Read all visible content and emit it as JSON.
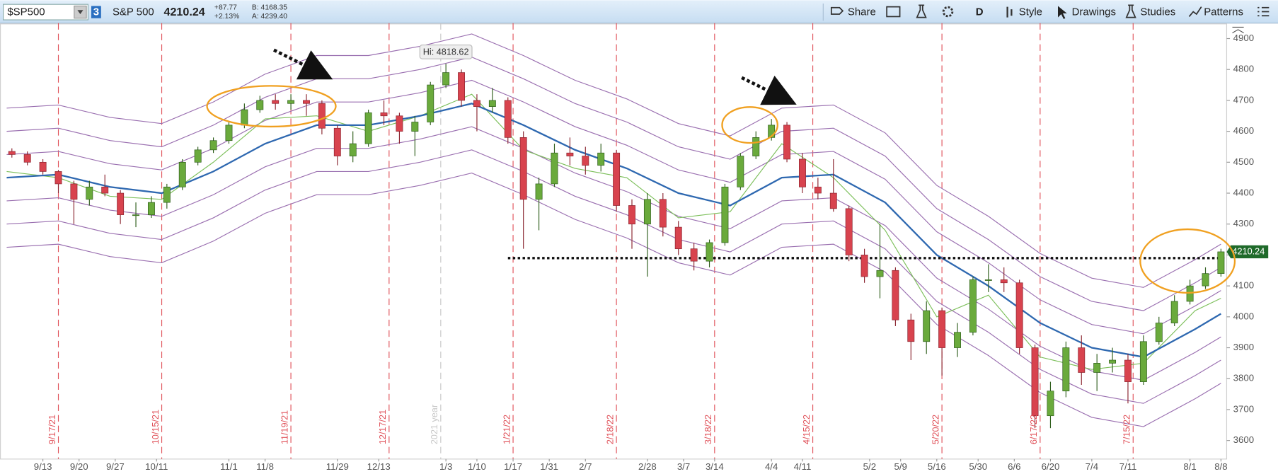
{
  "toolbar": {
    "symbol": "$SP500",
    "badge": "3",
    "name": "S&P 500",
    "last": "4210.24",
    "change": "+87.77",
    "change_pct": "+2.13%",
    "bid": "B: 4168.35",
    "ask": "A: 4239.40",
    "buttons": [
      "Share",
      "D",
      "Style",
      "Drawings",
      "Studies",
      "Patterns"
    ]
  },
  "chart_data": {
    "type": "candlestick",
    "x": [
      1,
      4,
      7,
      10,
      13,
      16,
      19,
      22,
      25,
      28,
      31,
      34,
      37,
      40,
      43,
      46,
      49,
      52,
      55,
      58,
      61,
      64,
      67,
      70,
      73,
      76,
      79,
      82,
      85,
      88,
      91,
      94,
      97,
      100,
      103,
      106,
      109,
      112,
      115,
      118,
      121,
      124,
      127,
      130,
      133,
      136,
      139,
      142,
      145,
      148,
      151,
      154,
      157,
      160,
      163,
      166,
      169,
      172,
      175,
      178,
      181,
      184,
      187,
      190,
      193,
      196,
      199,
      202,
      205,
      208,
      211,
      214,
      217,
      220,
      223,
      226,
      229,
      232,
      235
    ],
    "open": [
      4535,
      4525,
      4500,
      4470,
      4430,
      4380,
      4420,
      4400,
      4330,
      4330,
      4370,
      4420,
      4500,
      4540,
      4570,
      4620,
      4670,
      4700,
      4690,
      4700,
      4690,
      4610,
      4520,
      4560,
      4660,
      4650,
      4600,
      4630,
      4750,
      4790,
      4700,
      4680,
      4700,
      4580,
      4380,
      4430,
      4530,
      4520,
      4490,
      4530,
      4360,
      4300,
      4380,
      4290,
      4220,
      4180,
      4240,
      4420,
      4520,
      4580,
      4620,
      4510,
      4420,
      4400,
      4350,
      4200,
      4130,
      4150,
      3990,
      3920,
      4020,
      3900,
      3950,
      4120,
      4120,
      4110,
      3900,
      3680,
      3760,
      3900,
      3820,
      3850,
      3860,
      3790,
      3920,
      3980,
      4050,
      4100,
      4140
    ],
    "high": [
      4545,
      4535,
      4510,
      4475,
      4440,
      4440,
      4460,
      4410,
      4370,
      4390,
      4430,
      4510,
      4550,
      4580,
      4630,
      4690,
      4715,
      4720,
      4720,
      4720,
      4700,
      4620,
      4600,
      4670,
      4700,
      4660,
      4650,
      4760,
      4818.62,
      4800,
      4720,
      4740,
      4710,
      4600,
      4450,
      4560,
      4580,
      4550,
      4560,
      4540,
      4380,
      4400,
      4400,
      4310,
      4240,
      4250,
      4430,
      4530,
      4600,
      4640,
      4630,
      4530,
      4450,
      4510,
      4360,
      4220,
      4300,
      4160,
      4010,
      4050,
      4030,
      3980,
      4130,
      4170,
      4160,
      4120,
      3910,
      3790,
      3920,
      3940,
      3880,
      3900,
      3880,
      3940,
      4000,
      4070,
      4120,
      4160,
      4220
    ],
    "low": [
      4515,
      4490,
      4460,
      4400,
      4300,
      4360,
      4390,
      4300,
      4290,
      4320,
      4350,
      4410,
      4490,
      4530,
      4560,
      4610,
      4660,
      4670,
      4670,
      4650,
      4590,
      4490,
      4500,
      4550,
      4620,
      4560,
      4520,
      4620,
      4740,
      4680,
      4600,
      4660,
      4560,
      4220,
      4280,
      4420,
      4490,
      4460,
      4470,
      4340,
      4220,
      4130,
      4260,
      4200,
      4150,
      4160,
      4230,
      4410,
      4510,
      4570,
      4500,
      4400,
      4380,
      4340,
      4180,
      4110,
      4060,
      3970,
      3860,
      3880,
      3810,
      3870,
      3940,
      4080,
      4080,
      3880,
      3640,
      3640,
      3740,
      3780,
      3760,
      3820,
      3720,
      3780,
      3910,
      3970,
      4040,
      4090,
      4130
    ],
    "close": [
      4525,
      4500,
      4470,
      4430,
      4380,
      4420,
      4400,
      4330,
      4330,
      4370,
      4420,
      4500,
      4540,
      4570,
      4620,
      4670,
      4700,
      4690,
      4700,
      4690,
      4610,
      4520,
      4560,
      4660,
      4650,
      4600,
      4630,
      4750,
      4790,
      4700,
      4680,
      4700,
      4580,
      4380,
      4430,
      4530,
      4520,
      4490,
      4530,
      4360,
      4300,
      4380,
      4290,
      4220,
      4180,
      4240,
      4420,
      4520,
      4580,
      4620,
      4510,
      4420,
      4400,
      4350,
      4200,
      4130,
      4150,
      3990,
      3920,
      4020,
      3900,
      3950,
      4120,
      4120,
      4110,
      3900,
      3680,
      3760,
      3900,
      3820,
      3850,
      3860,
      3790,
      3920,
      3980,
      4050,
      4100,
      4140,
      4210.24
    ],
    "up_color": "#6aaa3c",
    "down_color": "#d8434e",
    "line_x": [
      0,
      10,
      20,
      30,
      40,
      50,
      60,
      70,
      80,
      90,
      100,
      110,
      120,
      130,
      140,
      150,
      160,
      170,
      180,
      190,
      200,
      210,
      220,
      230,
      235
    ],
    "line_series": [
      {
        "color": "#9a6fb0",
        "width": 1,
        "values": [
          4675,
          4685,
          4645,
          4625,
          4695,
          4785,
          4845,
          4845,
          4875,
          4915,
          4845,
          4765,
          4705,
          4625,
          4585,
          4675,
          4685,
          4595,
          4425,
          4325,
          4205,
          4125,
          4095,
          4185,
          4235
        ]
      },
      {
        "color": "#9a6fb0",
        "width": 1,
        "values": [
          4600,
          4610,
          4570,
          4550,
          4620,
          4710,
          4770,
          4770,
          4800,
          4840,
          4770,
          4690,
          4630,
          4550,
          4510,
          4600,
          4610,
          4520,
          4350,
          4250,
          4130,
          4050,
          4020,
          4110,
          4160
        ]
      },
      {
        "color": "#9a6fb0",
        "width": 1,
        "values": [
          4525,
          4535,
          4495,
          4475,
          4545,
          4635,
          4695,
          4695,
          4725,
          4765,
          4695,
          4615,
          4555,
          4475,
          4435,
          4525,
          4535,
          4445,
          4275,
          4175,
          4055,
          3975,
          3945,
          4035,
          4085
        ]
      },
      {
        "color": "#9a6fb0",
        "width": 1,
        "values": [
          4375,
          4385,
          4345,
          4325,
          4395,
          4485,
          4545,
          4545,
          4575,
          4615,
          4545,
          4465,
          4405,
          4325,
          4285,
          4375,
          4385,
          4295,
          4125,
          4025,
          3905,
          3825,
          3795,
          3885,
          3935
        ]
      },
      {
        "color": "#9a6fb0",
        "width": 1,
        "values": [
          4300,
          4310,
          4270,
          4250,
          4320,
          4410,
          4470,
          4470,
          4500,
          4540,
          4470,
          4390,
          4330,
          4250,
          4210,
          4300,
          4310,
          4220,
          4050,
          3950,
          3830,
          3750,
          3720,
          3810,
          3860
        ]
      },
      {
        "color": "#9a6fb0",
        "width": 1,
        "values": [
          4225,
          4235,
          4195,
          4175,
          4245,
          4335,
          4395,
          4395,
          4425,
          4465,
          4395,
          4315,
          4255,
          4175,
          4135,
          4225,
          4235,
          4145,
          3975,
          3875,
          3755,
          3675,
          3645,
          3735,
          3785
        ]
      },
      {
        "color": "#7cbf5a",
        "width": 1,
        "values": [
          4470,
          4450,
          4390,
          4380,
          4500,
          4640,
          4650,
          4600,
          4650,
          4720,
          4540,
          4480,
          4450,
          4320,
          4340,
          4560,
          4450,
          4280,
          4000,
          4070,
          3870,
          3830,
          3850,
          4020,
          4060
        ]
      },
      {
        "color": "#2e68b0",
        "width": 2,
        "values": [
          4450,
          4460,
          4420,
          4400,
          4470,
          4560,
          4620,
          4620,
          4650,
          4690,
          4620,
          4540,
          4480,
          4400,
          4360,
          4450,
          4460,
          4370,
          4200,
          4100,
          3980,
          3900,
          3870,
          3960,
          4010
        ]
      }
    ],
    "xlim": [
      -1.3,
      236.1
    ],
    "ylim": [
      3540,
      4950
    ],
    "yticks": [
      3600,
      3700,
      3800,
      3900,
      4000,
      4100,
      4200,
      4300,
      4400,
      4500,
      4600,
      4700,
      4800,
      4900
    ],
    "xticks": [
      {
        "value": 7,
        "label": "9/13"
      },
      {
        "value": 14,
        "label": "9/20"
      },
      {
        "value": 21,
        "label": "9/27"
      },
      {
        "value": 29,
        "label": "10/11"
      },
      {
        "value": 43,
        "label": "11/1"
      },
      {
        "value": 50,
        "label": "11/8"
      },
      {
        "value": 64,
        "label": "11/29"
      },
      {
        "value": 72,
        "label": "12/13"
      },
      {
        "value": 85,
        "label": "1/3"
      },
      {
        "value": 91,
        "label": "1/10"
      },
      {
        "value": 98,
        "label": "1/17"
      },
      {
        "value": 105,
        "label": "1/31"
      },
      {
        "value": 112,
        "label": "2/7"
      },
      {
        "value": 124,
        "label": "2/28"
      },
      {
        "value": 131,
        "label": "3/7"
      },
      {
        "value": 137,
        "label": "3/14"
      },
      {
        "value": 148,
        "label": "4/4"
      },
      {
        "value": 154,
        "label": "4/11"
      },
      {
        "value": 167,
        "label": "5/2"
      },
      {
        "value": 173,
        "label": "5/9"
      },
      {
        "value": 180,
        "label": "5/16"
      },
      {
        "value": 188,
        "label": "5/30"
      },
      {
        "value": 195,
        "label": "6/6"
      },
      {
        "value": 202,
        "label": "6/20"
      },
      {
        "value": 210,
        "label": "7/4"
      },
      {
        "value": 217,
        "label": "7/11"
      },
      {
        "value": 229,
        "label": "8/1"
      },
      {
        "value": 235,
        "label": "8/8"
      }
    ],
    "event_color": "#e0525a",
    "event_lines": [
      {
        "value": 10,
        "label": "9/17/21"
      },
      {
        "value": 30,
        "label": "10/15/21"
      },
      {
        "value": 55,
        "label": "11/19/21"
      },
      {
        "value": 74,
        "label": "12/17/21"
      },
      {
        "value": 84,
        "label": "2021 year",
        "color": "#c8c8c8"
      },
      {
        "value": 98,
        "label": "1/21/22"
      },
      {
        "value": 118,
        "label": "2/18/22"
      },
      {
        "value": 137,
        "label": "3/18/22"
      },
      {
        "value": 156,
        "label": "4/15/22"
      },
      {
        "value": 181,
        "label": "5/20/22"
      },
      {
        "value": 200,
        "label": "6/17/22"
      },
      {
        "value": 218,
        "label": "7/15/22"
      }
    ],
    "reference_line": {
      "value": 4190,
      "from": 97
    },
    "hi_label": "Hi: 4818.62"
  }
}
